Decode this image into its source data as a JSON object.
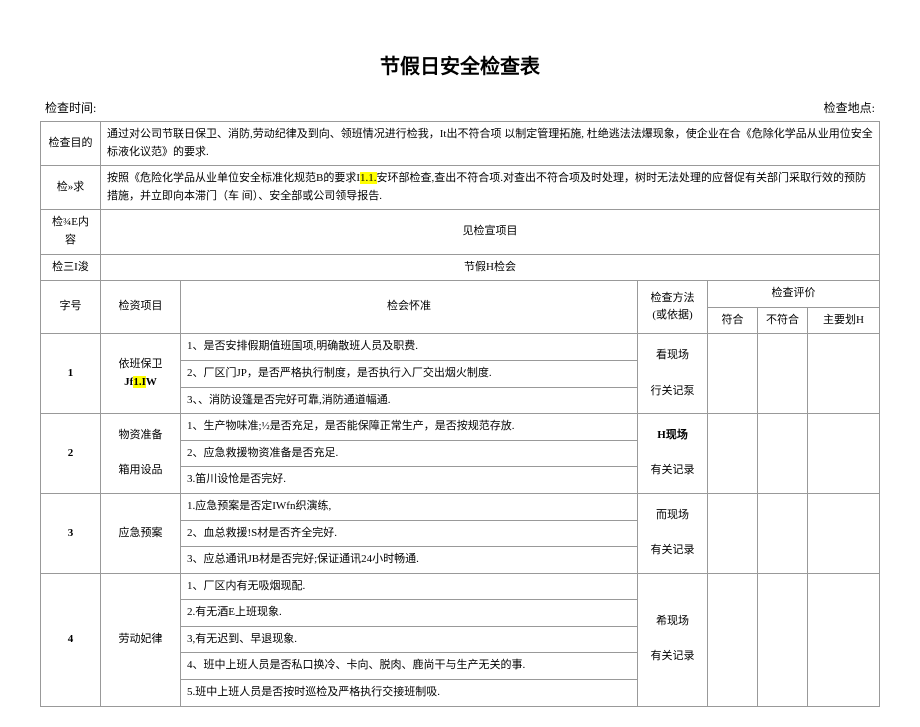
{
  "title": "节假日安全检查表",
  "header": {
    "time_label": "检查时间:",
    "location_label": "检查地点:"
  },
  "meta": {
    "purpose_label": "检查目的",
    "purpose_text": "通过对公司节联日保卫、消防,劳动纪律及到向、领班情况进行检我，It出不符合项 以制定管理拓施, 杜绝逃法法爆现象，使企业在合《危除化学品从业用位安全标液化议范》的要求.",
    "require_label": "检»求",
    "require_prefix": "按照《危险化学品从业单位安全标准化规范B的要求I",
    "require_highlight": "1.1.",
    "require_suffix": "安环部检查,查出不符合项.对查出不符合项及时处理，树时无法处理的应督促有关部门采取行效的预防措施，并立即向本滞门（车 间）、安全部或公司领导报告.",
    "content_label": "检¾E内容",
    "content_text": "见检宣项目",
    "group_label": "检三I浚",
    "group_text": "节假H检会"
  },
  "table_headers": {
    "num": "字号",
    "project": "检资项目",
    "standard": "检会怀准",
    "method": "检查方法",
    "method_sub": "(或依据)",
    "eval": "检查评价",
    "conform": "符合",
    "nonconform": "不符合",
    "main": "主要划H"
  },
  "rows": [
    {
      "num": "1",
      "project": "依班保卫",
      "project_sub_prefix": "Jf",
      "project_sub_highlight": "1.I",
      "project_sub_suffix": "W",
      "items": [
        "1、是否安排假期值班国项,明确散班人员及职费.",
        "2、厂区门JP，是否严格执行制度，是否执行入厂交出烟火制度.",
        "3、、消防设篷是否完好可靠,消防通道幅通."
      ],
      "method": [
        "看现场",
        "行关记泵"
      ]
    },
    {
      "num": "2",
      "project": "物资准备",
      "project_sub": "箱用设品",
      "items": [
        "1、生产物味准;½是否充足，是否能保障正常生产，是否按规范存放.",
        "2、应急救援物资准备是否充足.",
        "3.笛川设怆是否完好."
      ],
      "method": [
        "H现场",
        "有关记录"
      ]
    },
    {
      "num": "3",
      "project": "应急预案",
      "items": [
        "1.应急预案是否定IWfn织演练,",
        "2、血总救援!S材是否齐全完好.",
        "3、应总通讯JB材是否完好;保证通讯24小时畅通."
      ],
      "method": [
        "而现场",
        "有关记录"
      ]
    },
    {
      "num": "4",
      "project": "劳动妃律",
      "items": [
        "1、厂区内有无吸烟现配.",
        "2.有无酒E上班现象.",
        "3,有无迟到、早退现象.",
        "4、班中上班人员是否私口换冷、卡向、脱肉、鹿尚干与生产无关的事.",
        "5.班中上班人员是否按时巡检及严格执行交接班制吸."
      ],
      "method": [
        "希现场",
        "有关记录"
      ]
    }
  ]
}
